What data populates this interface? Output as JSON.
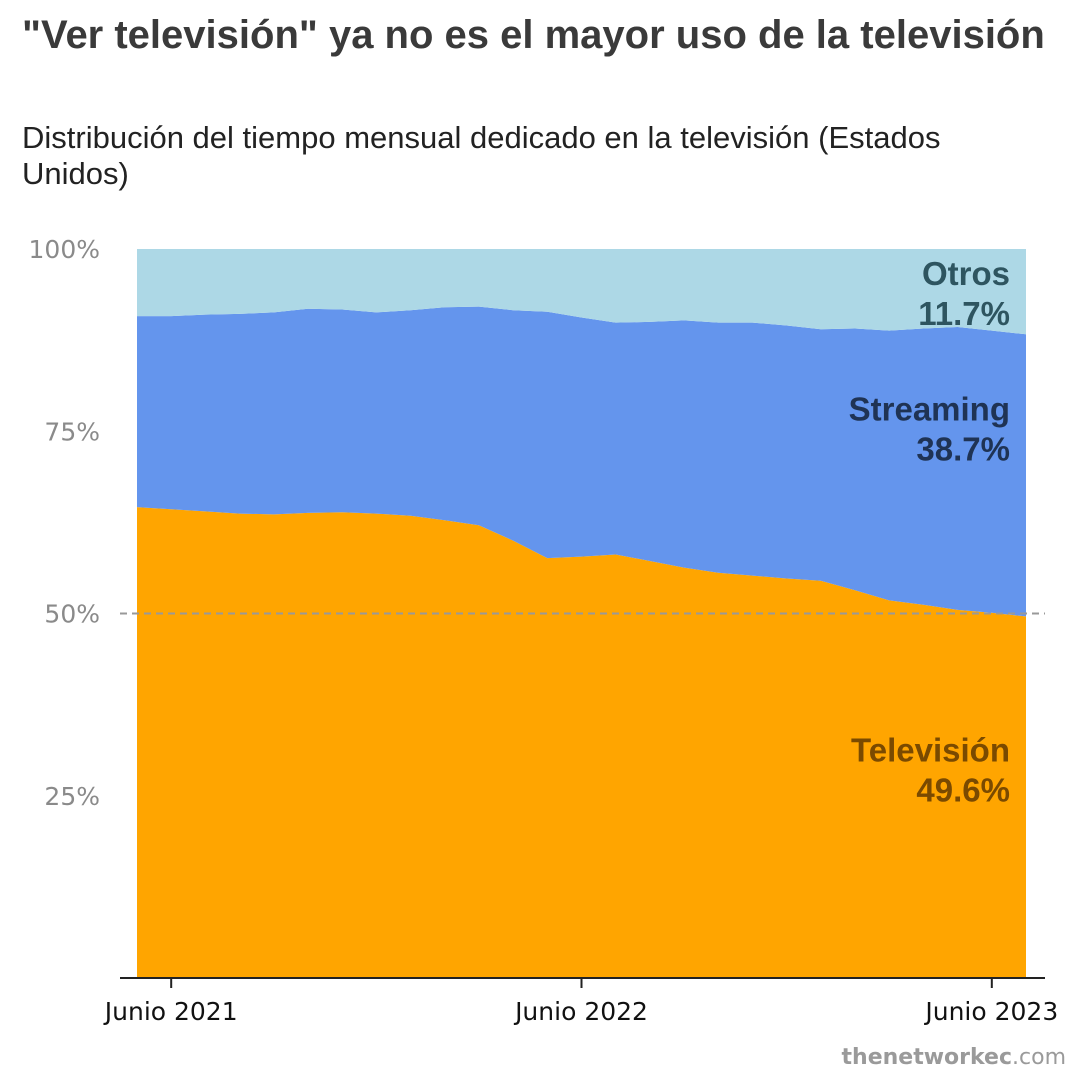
{
  "header": {
    "title": "\"Ver televisión\" ya no es el mayor uso de la televisión",
    "subtitle": "Distribución del tiempo mensual dedicado en la televisión (Estados Unidos)"
  },
  "source": {
    "bold": "thenetworkec",
    "rest": ".com"
  },
  "colors": {
    "television": "#FFA500",
    "streaming": "#6495ED",
    "otros": "#ADD8E6",
    "television_label": "#7a4a00",
    "streaming_label": "#1f3354",
    "otros_label": "#2e5560",
    "reference_line": "#999999"
  },
  "chart_data": {
    "type": "area",
    "stacked": true,
    "x": [
      "2021-05",
      "2021-06",
      "2021-07",
      "2021-08",
      "2021-09",
      "2021-10",
      "2021-11",
      "2021-12",
      "2022-01",
      "2022-02",
      "2022-03",
      "2022-04",
      "2022-05",
      "2022-06",
      "2022-07",
      "2022-08",
      "2022-09",
      "2022-10",
      "2022-11",
      "2022-12",
      "2023-01",
      "2023-02",
      "2023-03",
      "2023-04",
      "2023-05",
      "2023-06",
      "2023-07"
    ],
    "x_tick_labels": [
      {
        "x": "2021-06",
        "label": "Junio 2021"
      },
      {
        "x": "2022-06",
        "label": "Junio 2022"
      },
      {
        "x": "2023-06",
        "label": "Junio 2023"
      }
    ],
    "ylim": [
      0,
      100
    ],
    "y_ticks": [
      {
        "value": 25,
        "label": "25%"
      },
      {
        "value": 50,
        "label": "50%"
      },
      {
        "value": 75,
        "label": "75%"
      },
      {
        "value": 100,
        "label": "100%"
      }
    ],
    "reference_line": 50,
    "series": [
      {
        "key": "television",
        "name": "Televisión",
        "values": [
          64.6,
          64.3,
          64.0,
          63.7,
          63.6,
          63.8,
          63.9,
          63.7,
          63.4,
          62.8,
          62.1,
          60.0,
          57.6,
          57.8,
          58.1,
          57.2,
          56.3,
          55.6,
          55.2,
          54.8,
          54.5,
          53.2,
          51.8,
          51.2,
          50.5,
          50.1,
          49.6
        ],
        "end_label": "49.6%"
      },
      {
        "key": "streaming",
        "name": "Streaming",
        "values": [
          26.2,
          26.5,
          27.0,
          27.4,
          27.7,
          28.0,
          27.8,
          27.6,
          28.2,
          29.2,
          30.0,
          31.6,
          33.8,
          32.8,
          31.8,
          32.8,
          33.9,
          34.3,
          34.7,
          34.7,
          34.5,
          35.9,
          37.0,
          37.9,
          38.8,
          38.7,
          38.7
        ],
        "end_label": "38.7%"
      },
      {
        "key": "otros",
        "name": "Otros",
        "values": [
          9.2,
          9.2,
          9.0,
          8.9,
          8.7,
          8.2,
          8.3,
          8.7,
          8.4,
          8.0,
          7.9,
          8.4,
          8.6,
          9.4,
          10.1,
          10.0,
          9.8,
          10.1,
          10.1,
          10.5,
          11.0,
          10.9,
          11.2,
          10.9,
          10.7,
          11.2,
          11.7
        ],
        "end_label": "11.7%"
      }
    ]
  }
}
